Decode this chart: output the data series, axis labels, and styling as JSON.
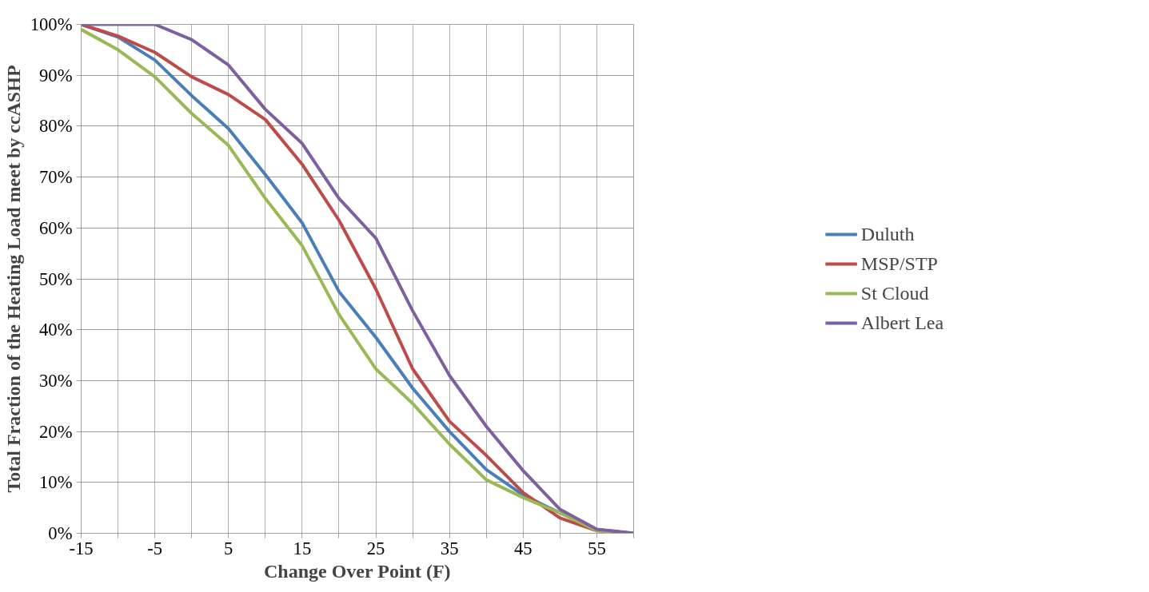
{
  "chart_data": {
    "type": "line",
    "xlabel": "Change Over Point (F)",
    "ylabel": "Total Fraction of the Heating Load meet by ccASHP",
    "x": [
      -15,
      -10,
      -5,
      0,
      5,
      10,
      15,
      20,
      25,
      30,
      35,
      40,
      45,
      50,
      55,
      60
    ],
    "series": [
      {
        "name": "Duluth",
        "color": "#4a7ebb",
        "values": [
          100,
          97.5,
          93,
          86,
          79.5,
          70.5,
          61,
          47.5,
          38.5,
          28.5,
          20,
          12.5,
          7.5,
          4,
          0.7,
          0
        ]
      },
      {
        "name": "MSP/STP",
        "color": "#be4b48",
        "values": [
          100,
          97.7,
          94.5,
          89.7,
          86.2,
          81.3,
          72.5,
          61.5,
          48,
          32.3,
          22,
          15.3,
          8,
          3,
          0.5,
          0
        ]
      },
      {
        "name": "St Cloud",
        "color": "#98b954",
        "values": [
          99,
          95,
          89.7,
          82.5,
          76.2,
          65.8,
          56.5,
          43,
          32.3,
          25.5,
          17.5,
          10.5,
          7,
          4,
          0.5,
          0
        ]
      },
      {
        "name": "Albert Lea",
        "color": "#7d60a0",
        "values": [
          100,
          100,
          100,
          97,
          92,
          83.3,
          76.6,
          65.8,
          58,
          43.7,
          31,
          21,
          12.3,
          4.7,
          0.8,
          0
        ]
      }
    ],
    "xlim": [
      -15,
      60
    ],
    "xticks": [
      -15,
      {
        "value": -10,
        "label": null
      },
      -5,
      {
        "value": 0,
        "label": null
      },
      5,
      {
        "value": 10,
        "label": null
      },
      15,
      {
        "value": 20,
        "label": null
      },
      25,
      {
        "value": 30,
        "label": null
      },
      35,
      {
        "value": 40,
        "label": null
      },
      45,
      {
        "value": 50,
        "label": null
      },
      55,
      {
        "value": 60,
        "label": null
      }
    ],
    "ylim": [
      0,
      100
    ],
    "yticks": [
      {
        "value": 0,
        "label": "0%"
      },
      {
        "value": 10,
        "label": "10%"
      },
      {
        "value": 20,
        "label": "20%"
      },
      {
        "value": 30,
        "label": "30%"
      },
      {
        "value": 40,
        "label": "40%"
      },
      {
        "value": 50,
        "label": "50%"
      },
      {
        "value": 60,
        "label": "60%"
      },
      {
        "value": 70,
        "label": "70%"
      },
      {
        "value": 80,
        "label": "80%"
      },
      {
        "value": 90,
        "label": "90%"
      },
      {
        "value": 100,
        "label": "100%"
      }
    ],
    "grid": true,
    "legend": "right",
    "marker": "none",
    "line_style": "solid"
  }
}
